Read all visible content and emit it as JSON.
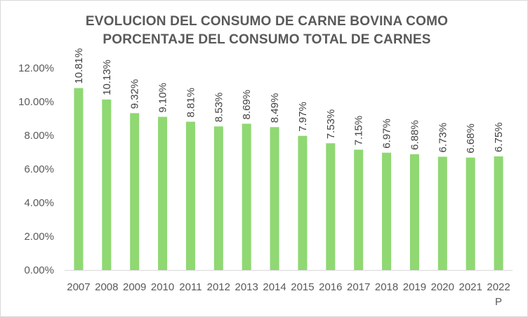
{
  "chart_data": {
    "type": "bar",
    "title_lines": [
      "EVOLUCION DEL CONSUMO DE CARNE BOVINA COMO",
      "PORCENTAJE DEL CONSUMO TOTAL DE CARNES"
    ],
    "categories": [
      "2007",
      "2008",
      "2009",
      "2010",
      "2011",
      "2012",
      "2013",
      "2014",
      "2015",
      "2016",
      "2017",
      "2018",
      "2019",
      "2020",
      "2021",
      "2022"
    ],
    "category_sublabels": [
      "",
      "",
      "",
      "",
      "",
      "",
      "",
      "",
      "",
      "",
      "",
      "",
      "",
      "",
      "",
      "P"
    ],
    "values": [
      10.81,
      10.13,
      9.32,
      9.1,
      8.81,
      8.53,
      8.69,
      8.49,
      7.97,
      7.53,
      7.15,
      6.97,
      6.88,
      6.73,
      6.68,
      6.75
    ],
    "data_labels": [
      "10.81%",
      "10.13%",
      "9.32%",
      "9.10%",
      "8.81%",
      "8.53%",
      "8.69%",
      "8.49%",
      "7.97%",
      "7.53%",
      "7.15%",
      "6.97%",
      "6.88%",
      "6.73%",
      "6.68%",
      "6.75%"
    ],
    "y_ticks": [
      0,
      2,
      4,
      6,
      8,
      10,
      12
    ],
    "y_tick_labels": [
      "0.00%",
      "2.00%",
      "4.00%",
      "6.00%",
      "8.00%",
      "10.00%",
      "12.00%"
    ],
    "ylim": [
      0,
      12
    ],
    "grid": false,
    "legend": "none",
    "bar_color": "#8fd872",
    "axis_color": "#d9d9d9",
    "text_color": "#595959"
  }
}
